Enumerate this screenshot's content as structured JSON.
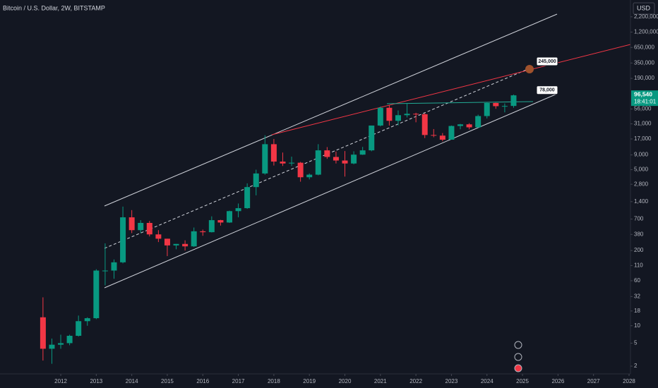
{
  "chart_data": {
    "type": "candlestick",
    "title": "Bitcoin / U.S. Dollar, 2W, BITSTAMP",
    "currency": "USD",
    "log_scale": true,
    "up_color": "#089981",
    "down_color": "#f23645",
    "x": [
      2011.5,
      2011.75,
      2012,
      2012.25,
      2012.5,
      2012.75,
      2013,
      2013.25,
      2013.5,
      2013.75,
      2014,
      2014.25,
      2014.5,
      2014.75,
      2015,
      2015.25,
      2015.5,
      2015.75,
      2016,
      2016.25,
      2016.5,
      2016.75,
      2017,
      2017.25,
      2017.5,
      2017.75,
      2018,
      2018.25,
      2018.5,
      2018.75,
      2019,
      2019.25,
      2019.5,
      2019.75,
      2020,
      2020.25,
      2020.5,
      2020.75,
      2021,
      2021.25,
      2021.5,
      2021.75,
      2022,
      2022.25,
      2022.5,
      2022.75,
      2023,
      2023.25,
      2023.5,
      2023.75,
      2024,
      2024.25,
      2024.5,
      2024.75
    ],
    "open": [
      14,
      4,
      4.7,
      5,
      6.7,
      12,
      13.5,
      90,
      90,
      125,
      750,
      450,
      600,
      380,
      320,
      245,
      260,
      236,
      430,
      415,
      670,
      610,
      960,
      1080,
      2500,
      4300,
      13800,
      6900,
      6400,
      6600,
      3700,
      4100,
      10800,
      8300,
      7200,
      6400,
      9100,
      10800,
      29000,
      58800,
      35000,
      43800,
      46300,
      45500,
      19900,
      19400,
      16500,
      28500,
      30400,
      27000,
      42300,
      71300,
      62700,
      63300
    ],
    "high": [
      31,
      6,
      7,
      7,
      15,
      14,
      95,
      266,
      140,
      1150,
      1000,
      670,
      650,
      450,
      320,
      260,
      300,
      500,
      460,
      780,
      680,
      980,
      1300,
      2900,
      5000,
      19700,
      17000,
      9900,
      8400,
      6800,
      4300,
      13800,
      12300,
      10300,
      10500,
      10400,
      12400,
      29000,
      61800,
      64800,
      52900,
      69000,
      48200,
      47400,
      25200,
      21500,
      29000,
      31000,
      31800,
      44700,
      73800,
      72000,
      70000,
      99500
    ],
    "low": [
      2.5,
      2.2,
      4,
      4.6,
      6.5,
      10,
      13,
      50,
      65,
      120,
      400,
      400,
      350,
      280,
      160,
      210,
      200,
      230,
      360,
      410,
      540,
      600,
      750,
      1050,
      1800,
      4100,
      5900,
      5800,
      5800,
      3100,
      3400,
      4000,
      7700,
      6400,
      3800,
      6200,
      9000,
      10400,
      28000,
      29000,
      29300,
      40000,
      33000,
      17600,
      18200,
      15500,
      16500,
      25000,
      24900,
      26500,
      38500,
      56500,
      49000,
      58900
    ],
    "close": [
      4,
      4.7,
      5,
      6.7,
      12,
      13.5,
      90,
      90,
      125,
      750,
      450,
      600,
      380,
      320,
      245,
      260,
      236,
      430,
      415,
      670,
      610,
      960,
      1080,
      2500,
      4300,
      13800,
      6900,
      6400,
      6600,
      3700,
      4100,
      10800,
      8300,
      7200,
      6400,
      9100,
      10800,
      29000,
      58800,
      35000,
      43800,
      46300,
      45500,
      19900,
      19400,
      16500,
      28500,
      30400,
      27000,
      42300,
      71300,
      62700,
      63300,
      96540
    ],
    "xlim": [
      2010.29,
      2028.04
    ],
    "xticks": [
      2012,
      2013,
      2014,
      2015,
      2016,
      2017,
      2018,
      2019,
      2020,
      2021,
      2022,
      2023,
      2024,
      2025,
      2026,
      2027,
      2028
    ],
    "ylim": [
      1.47,
      4300000
    ],
    "yticks": [
      {
        "value": 2200000,
        "label": "2,200,000"
      },
      {
        "value": 1200000,
        "label": "1,200,000"
      },
      {
        "value": 650000,
        "label": "650,000"
      },
      {
        "value": 350000,
        "label": "350,000"
      },
      {
        "value": 190000,
        "label": "190,000"
      },
      {
        "value": 56000,
        "label": "56,000"
      },
      {
        "value": 31000,
        "label": "31,000"
      },
      {
        "value": 17000,
        "label": "17,000"
      },
      {
        "value": 9000,
        "label": "9,000"
      },
      {
        "value": 5000,
        "label": "5,000"
      },
      {
        "value": 2800,
        "label": "2,800"
      },
      {
        "value": 1400,
        "label": "1,400"
      },
      700,
      380,
      200,
      110,
      60,
      32,
      18,
      10,
      5,
      2
    ],
    "last_price": {
      "value": 96540,
      "label": "96,540"
    },
    "countdown": "18:41:01",
    "annotations": [
      {
        "value": 245000,
        "label": "245,000"
      },
      {
        "value": 78000,
        "label": "78,000"
      }
    ]
  }
}
